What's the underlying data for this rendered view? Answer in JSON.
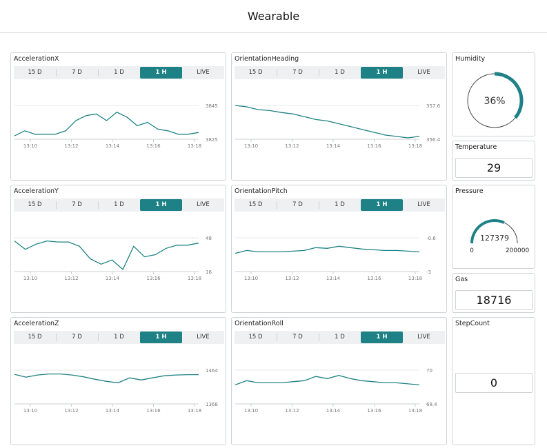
{
  "app": {
    "title": "Wearable"
  },
  "time_tabs": [
    "15 D",
    "7 D",
    "1 D",
    "1 H",
    "LIVE"
  ],
  "active_tab": "1 H",
  "accent_color": "#1d8185",
  "charts": [
    {
      "id": "accelerationX",
      "title": "AccelerationX",
      "chart_data": {
        "type": "line",
        "x": [
          "13:10",
          "13:10.5",
          "13:11",
          "13:11.5",
          "13:12",
          "13:12.5",
          "13:13",
          "13:13.3",
          "13:13.6",
          "13:14",
          "13:14.3",
          "13:14.6",
          "13:15",
          "13:15.5",
          "13:16",
          "13:16.5",
          "13:17",
          "13:17.5",
          "13:18"
        ],
        "y": [
          3827,
          3830,
          3828,
          3828,
          3828,
          3830,
          3836,
          3839,
          3840,
          3836,
          3841,
          3838,
          3833,
          3835,
          3831,
          3830,
          3828,
          3828,
          3829
        ],
        "x_ticks": [
          "13:10",
          "13:12",
          "13:14",
          "13:16",
          "13:18"
        ],
        "y_ticks": [
          "3845",
          "3825"
        ],
        "ylim": [
          3825,
          3845
        ]
      }
    },
    {
      "id": "orientationHeading",
      "title": "OrientationHeading",
      "chart_data": {
        "type": "line",
        "x": [
          "13:10",
          "13:10.5",
          "13:11",
          "13:11.5",
          "13:12",
          "13:12.5",
          "13:13",
          "13:13.5",
          "13:14",
          "13:14.5",
          "13:15",
          "13:15.5",
          "13:16",
          "13:16.5",
          "13:17",
          "13:17.5",
          "13:18"
        ],
        "y": [
          357.6,
          357.55,
          357.45,
          357.42,
          357.35,
          357.3,
          357.2,
          357.1,
          357.05,
          356.95,
          356.85,
          356.75,
          356.65,
          356.55,
          356.5,
          356.45,
          356.5
        ],
        "x_ticks": [
          "13:10",
          "13:12",
          "13:14",
          "13:16",
          "13:18"
        ],
        "y_ticks": [
          "357.6",
          "356.4"
        ],
        "ylim": [
          356.4,
          357.6
        ]
      }
    },
    {
      "id": "accelerationY",
      "title": "AccelerationY",
      "chart_data": {
        "type": "line",
        "x": [
          "13:10",
          "13:10.5",
          "13:11",
          "13:11.5",
          "13:12",
          "13:12.5",
          "13:13",
          "13:13.5",
          "13:14",
          "13:14.5",
          "13:15",
          "13:15.3",
          "13:15.6",
          "13:16",
          "13:16.5",
          "13:17",
          "13:17.5",
          "13:18"
        ],
        "y": [
          45,
          37,
          42,
          45,
          44,
          44,
          40,
          28,
          23,
          27,
          18,
          40,
          30,
          32,
          38,
          41,
          41,
          43
        ],
        "x_ticks": [
          "13:10",
          "13:12",
          "13:14",
          "13:16",
          "13:18"
        ],
        "y_ticks": [
          "48",
          "16"
        ],
        "ylim": [
          16,
          48
        ]
      }
    },
    {
      "id": "orientationPitch",
      "title": "OrientationPitch",
      "chart_data": {
        "type": "line",
        "x": [
          "13:10",
          "13:10.5",
          "13:11",
          "13:11.5",
          "13:12",
          "13:12.5",
          "13:13",
          "13:13.5",
          "13:14",
          "13:14.5",
          "13:15",
          "13:15.5",
          "13:16",
          "13:16.5",
          "13:17",
          "13:17.5",
          "13:18"
        ],
        "y": [
          -1.7,
          -1.5,
          -1.6,
          -1.6,
          -1.6,
          -1.55,
          -1.5,
          -1.3,
          -1.35,
          -1.2,
          -1.3,
          -1.4,
          -1.45,
          -1.5,
          -1.5,
          -1.55,
          -1.6
        ],
        "x_ticks": [
          "13:10",
          "13:12",
          "13:14",
          "13:16",
          "13:18"
        ],
        "y_ticks": [
          "-0.6",
          "-3"
        ],
        "ylim": [
          -3,
          -0.6
        ]
      }
    },
    {
      "id": "accelerationZ",
      "title": "AccelerationZ",
      "chart_data": {
        "type": "line",
        "x": [
          "13:10",
          "13:10.5",
          "13:11",
          "13:11.5",
          "13:12",
          "13:12.5",
          "13:13",
          "13:13.5",
          "13:14",
          "13:14.5",
          "13:15",
          "13:15.5",
          "13:16",
          "13:16.5",
          "13:17",
          "13:17.5",
          "13:18"
        ],
        "y": [
          1452,
          1444,
          1450,
          1453,
          1453,
          1450,
          1445,
          1438,
          1432,
          1428,
          1442,
          1436,
          1442,
          1448,
          1450,
          1451,
          1451
        ],
        "x_ticks": [
          "13:10",
          "13:12",
          "13:14",
          "13:16",
          "13:18"
        ],
        "y_ticks": [
          "1464",
          "1368"
        ],
        "ylim": [
          1368,
          1464
        ]
      }
    },
    {
      "id": "orientationRoll",
      "title": "OrientationRoll",
      "chart_data": {
        "type": "line",
        "x": [
          "13:10",
          "13:10.5",
          "13:11",
          "13:11.5",
          "13:12",
          "13:12.5",
          "13:13",
          "13:13.5",
          "13:14",
          "13:14.5",
          "13:15",
          "13:15.5",
          "13:16",
          "13:16.5",
          "13:17",
          "13:17.5",
          "13:18"
        ],
        "y": [
          69.3,
          69.5,
          69.4,
          69.4,
          69.4,
          69.45,
          69.5,
          69.7,
          69.6,
          69.75,
          69.6,
          69.5,
          69.45,
          69.4,
          69.4,
          69.35,
          69.3
        ],
        "x_ticks": [
          "13:10",
          "13:12",
          "13:14",
          "13:16",
          "13:18"
        ],
        "y_ticks": [
          "70",
          "68.4"
        ],
        "ylim": [
          68.4,
          70
        ]
      }
    }
  ],
  "humidity": {
    "title": "Humidity",
    "value": 36,
    "display": "36%"
  },
  "temperature": {
    "title": "Temperature",
    "value": "29"
  },
  "pressure": {
    "title": "Pressure",
    "value": 127379,
    "display": "127379",
    "min": "0",
    "max": "200000"
  },
  "gas": {
    "title": "Gas",
    "value": "18716"
  },
  "stepcount": {
    "title": "StepCount",
    "value": "0"
  }
}
